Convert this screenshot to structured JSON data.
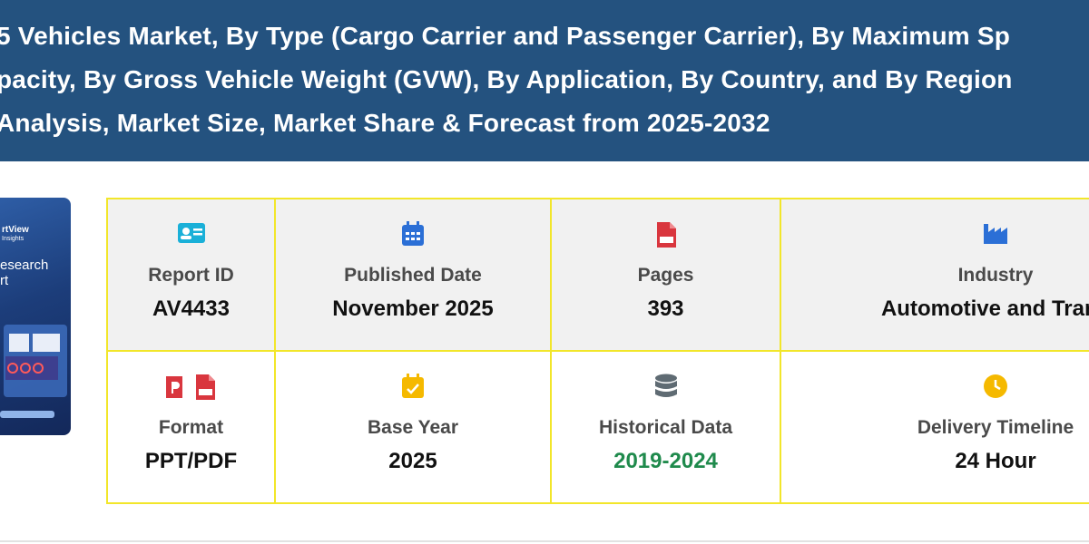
{
  "header": {
    "title_lines": [
      "5 Vehicles Market, By Type (Cargo Carrier and Passenger Carrier), By Maximum Sp",
      "pacity, By Gross Vehicle Weight (GVW), By Application, By Country, and By Region",
      "Analysis, Market Size, Market Share & Forecast from 2025-2032"
    ]
  },
  "cover": {
    "texts": [
      "rtView",
      "Insights",
      "esearch",
      "rt"
    ]
  },
  "cells": [
    {
      "label": "Report ID",
      "value": "AV4433"
    },
    {
      "label": "Published Date",
      "value": "November 2025"
    },
    {
      "label": "Pages",
      "value": "393"
    },
    {
      "label": "Industry",
      "value": "Automotive and Trans"
    },
    {
      "label": "Format",
      "value": "PPT/PDF"
    },
    {
      "label": "Base Year",
      "value": "2025"
    },
    {
      "label": "Historical Data",
      "value": "2019-2024"
    },
    {
      "label": "Delivery Timeline",
      "value": "24 Hour"
    }
  ]
}
